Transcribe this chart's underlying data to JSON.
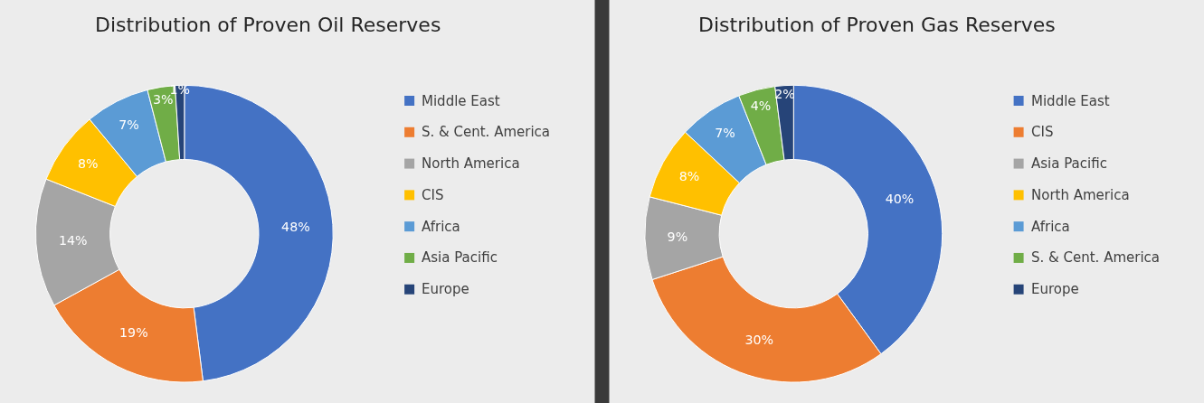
{
  "chart_data": [
    {
      "type": "donut",
      "title": "Distribution of Proven Oil Reserves",
      "categories": [
        "Middle East",
        "S. & Cent. America",
        "North America",
        "CIS",
        "Africa",
        "Asia Pacific",
        "Europe"
      ],
      "values": [
        48,
        19,
        14,
        8,
        7,
        3,
        1
      ],
      "value_labels": [
        "48%",
        "19%",
        "14%",
        "8%",
        "7%",
        "3%",
        "1%"
      ],
      "colors": [
        "#4472c4",
        "#ed7d31",
        "#a5a5a5",
        "#ffc000",
        "#5b9bd5",
        "#70ad47",
        "#264478"
      ],
      "legend": "right"
    },
    {
      "type": "donut",
      "title": "Distribution of Proven Gas Reserves",
      "categories": [
        "Middle East",
        "CIS",
        "Asia Pacific",
        "North America",
        "Africa",
        "S. & Cent. America",
        "Europe"
      ],
      "values": [
        40,
        30,
        9,
        8,
        7,
        4,
        2
      ],
      "value_labels": [
        "40%",
        "30%",
        "9%",
        "8%",
        "7%",
        "4%",
        "2%"
      ],
      "colors": [
        "#4472c4",
        "#ed7d31",
        "#a5a5a5",
        "#ffc000",
        "#5b9bd5",
        "#70ad47",
        "#264478"
      ],
      "legend": "right"
    }
  ]
}
